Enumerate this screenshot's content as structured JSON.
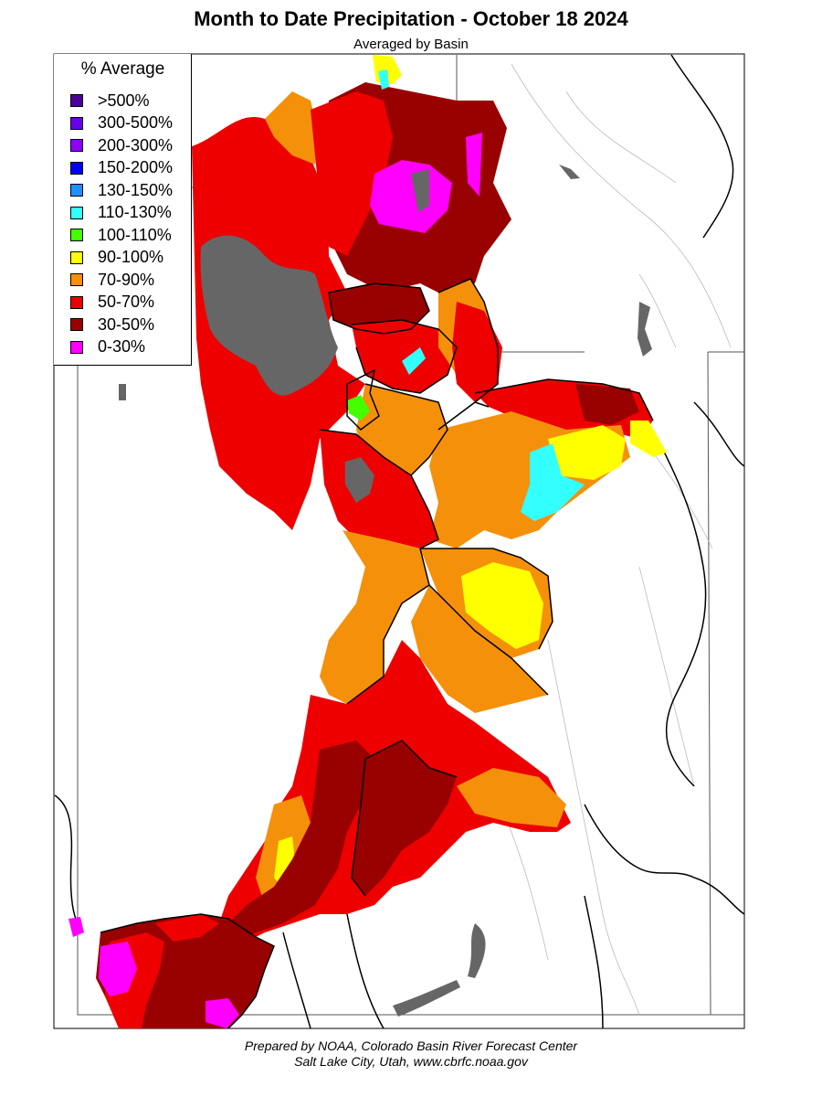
{
  "title": "Month to Date Precipitation - October 18 2024",
  "subtitle": "Averaged by Basin",
  "legend": {
    "title": "% Average",
    "items": [
      {
        "label": ">500%",
        "color": "#4b0099"
      },
      {
        "label": "300-500%",
        "color": "#6a00e6"
      },
      {
        "label": "200-300%",
        "color": "#9000ff"
      },
      {
        "label": "150-200%",
        "color": "#0000ff"
      },
      {
        "label": "130-150%",
        "color": "#1e90ff"
      },
      {
        "label": "110-130%",
        "color": "#33ffff"
      },
      {
        "label": "100-110%",
        "color": "#44ff00"
      },
      {
        "label": "90-100%",
        "color": "#ffff00"
      },
      {
        "label": "70-90%",
        "color": "#f5900a"
      },
      {
        "label": "50-70%",
        "color": "#ee0000"
      },
      {
        "label": "30-50%",
        "color": "#990000"
      },
      {
        "label": "0-30%",
        "color": "#ff00ff"
      }
    ]
  },
  "no_data_color": "#666666",
  "credit": {
    "line1": "Prepared by NOAA, Colorado Basin River Forecast Center",
    "line2": "Salt Lake City, Utah, www.cbrfc.noaa.gov"
  }
}
